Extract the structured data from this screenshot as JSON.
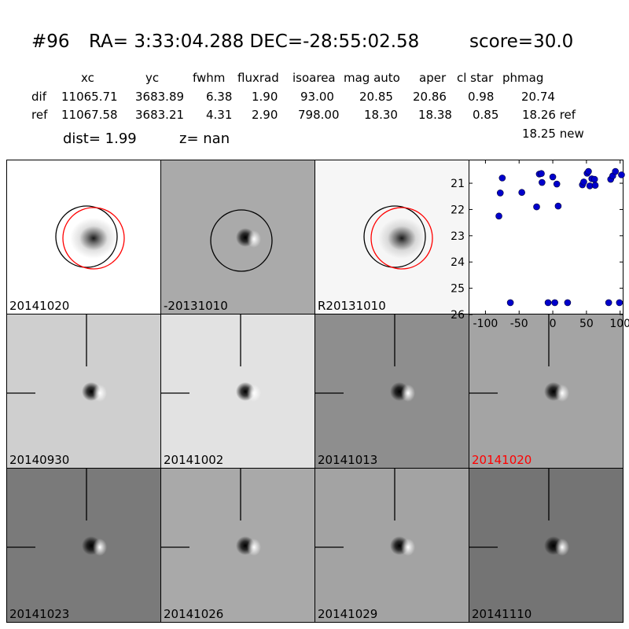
{
  "header": {
    "id": "#96",
    "coords": "RA= 3:33:04.288 DEC=-28:55:02.58",
    "score": "score=30.0"
  },
  "stats": {
    "columns": [
      "xc",
      "yc",
      "fwhm",
      "fluxrad",
      "isoarea",
      "mag auto",
      "aper",
      "cl star",
      "phmag"
    ],
    "rows": [
      {
        "label": "dif",
        "values": [
          "11065.71",
          "3683.89",
          "6.38",
          "1.90",
          "93.00",
          "20.85",
          "20.86",
          "0.98",
          "20.74"
        ]
      },
      {
        "label": "ref",
        "values": [
          "11067.58",
          "3683.21",
          "4.31",
          "2.90",
          "798.00",
          "18.30",
          "18.38",
          "0.85",
          "18.26 ref"
        ]
      }
    ],
    "extra": "18.25 new",
    "dist": "dist=  1.99",
    "z": "z=   nan"
  },
  "panels": [
    {
      "label": "20141020",
      "bg": "#ffffff",
      "type": "circles2",
      "red_label": false
    },
    {
      "label": "-20131010",
      "bg": "#aaaaaa",
      "type": "circle1",
      "red_label": false
    },
    {
      "label": "R20131010",
      "bg": "#f6f6f6",
      "type": "circles2",
      "red_label": false
    },
    {
      "label": "20140930",
      "bg": "#cfcfcf",
      "type": "cross",
      "red_label": false
    },
    {
      "label": "20141002",
      "bg": "#e2e2e2",
      "type": "cross",
      "red_label": false
    },
    {
      "label": "20141013",
      "bg": "#8e8e8e",
      "type": "cross",
      "red_label": false
    },
    {
      "label": "20141020",
      "bg": "#a4a4a4",
      "type": "cross",
      "red_label": true
    },
    {
      "label": "20141023",
      "bg": "#7a7a7a",
      "type": "cross",
      "red_label": false
    },
    {
      "label": "20141026",
      "bg": "#a9a9a9",
      "type": "cross",
      "red_label": false
    },
    {
      "label": "20141029",
      "bg": "#a3a3a3",
      "type": "cross",
      "red_label": false
    },
    {
      "label": "20141110",
      "bg": "#747474",
      "type": "cross",
      "red_label": false
    }
  ],
  "chart_data": {
    "type": "scatter",
    "title": "",
    "xlabel": "",
    "ylabel": "",
    "xlim": [
      -125,
      105
    ],
    "ylim": [
      26,
      20.1
    ],
    "xticks": [
      -100,
      -50,
      0,
      50,
      100
    ],
    "yticks": [
      21,
      22,
      23,
      24,
      25,
      26
    ],
    "point_color": "#0000cc",
    "points": [
      {
        "x": -80,
        "y": 22.25
      },
      {
        "x": -78,
        "y": 21.37
      },
      {
        "x": -75,
        "y": 20.8
      },
      {
        "x": -63,
        "y": 25.55
      },
      {
        "x": -46,
        "y": 21.35
      },
      {
        "x": -24,
        "y": 21.9
      },
      {
        "x": -20,
        "y": 20.65
      },
      {
        "x": -17,
        "y": 20.63
      },
      {
        "x": -16,
        "y": 20.97
      },
      {
        "x": -7,
        "y": 25.55
      },
      {
        "x": 0,
        "y": 20.76
      },
      {
        "x": 3,
        "y": 25.55
      },
      {
        "x": 6,
        "y": 21.03
      },
      {
        "x": 8,
        "y": 21.87
      },
      {
        "x": 22,
        "y": 25.55
      },
      {
        "x": 44,
        "y": 21.06
      },
      {
        "x": 46,
        "y": 20.95
      },
      {
        "x": 51,
        "y": 20.62
      },
      {
        "x": 53,
        "y": 20.55
      },
      {
        "x": 55,
        "y": 21.1
      },
      {
        "x": 58,
        "y": 20.83
      },
      {
        "x": 62,
        "y": 20.85
      },
      {
        "x": 63,
        "y": 21.08
      },
      {
        "x": 83,
        "y": 25.55
      },
      {
        "x": 86,
        "y": 20.85
      },
      {
        "x": 89,
        "y": 20.72
      },
      {
        "x": 93,
        "y": 20.55
      },
      {
        "x": 99,
        "y": 25.55
      },
      {
        "x": 102,
        "y": 20.68
      }
    ]
  }
}
